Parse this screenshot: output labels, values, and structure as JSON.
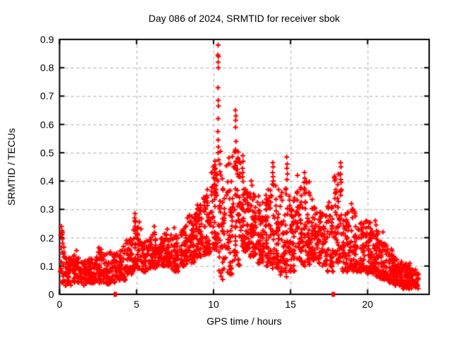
{
  "title": "Day 086 of 2024, SRMTID for receiver sbok",
  "colors": {
    "marker": "#ff0000",
    "grid": "#a8a8a8",
    "axis": "#000000",
    "background": "#ffffff",
    "text": "#000000"
  },
  "chart_data": {
    "type": "scatter",
    "title": "Day 086 of 2024, SRMTID for receiver sbok",
    "xlabel": "GPS time / hours",
    "ylabel": "SRMTID / TECUs",
    "xlim": [
      0,
      24
    ],
    "ylim": [
      0,
      0.9
    ],
    "xticks": [
      0,
      5,
      10,
      15,
      20
    ],
    "yticks": [
      0,
      0.1,
      0.2,
      0.3,
      0.4,
      0.5,
      0.6,
      0.7,
      0.8,
      0.9
    ],
    "grid": true,
    "grid_style": "dashed",
    "legend": "none",
    "series": [
      {
        "name": "srmtid",
        "marker": "plus",
        "color": "#ff0000",
        "envelope_bins": [
          [
            0.0,
            0.3,
            0.04,
            0.24,
            22
          ],
          [
            0.3,
            0.8,
            0.03,
            0.13,
            45
          ],
          [
            0.8,
            1.3,
            0.04,
            0.15,
            48
          ],
          [
            1.3,
            1.8,
            0.03,
            0.12,
            46
          ],
          [
            1.8,
            2.3,
            0.04,
            0.13,
            46
          ],
          [
            2.3,
            2.8,
            0.04,
            0.16,
            46
          ],
          [
            2.8,
            3.3,
            0.03,
            0.145,
            46
          ],
          [
            3.3,
            3.8,
            0.04,
            0.15,
            42
          ],
          [
            3.8,
            4.3,
            0.05,
            0.17,
            46
          ],
          [
            4.3,
            4.8,
            0.07,
            0.2,
            48
          ],
          [
            4.8,
            5.3,
            0.09,
            0.26,
            50
          ],
          [
            5.3,
            5.8,
            0.08,
            0.19,
            46
          ],
          [
            5.8,
            6.3,
            0.09,
            0.22,
            50
          ],
          [
            6.3,
            6.8,
            0.1,
            0.2,
            46
          ],
          [
            6.8,
            7.3,
            0.1,
            0.22,
            50
          ],
          [
            7.3,
            7.8,
            0.08,
            0.21,
            46
          ],
          [
            7.8,
            8.3,
            0.1,
            0.25,
            50
          ],
          [
            8.3,
            8.8,
            0.11,
            0.28,
            52
          ],
          [
            8.8,
            9.3,
            0.13,
            0.33,
            54
          ],
          [
            9.3,
            9.8,
            0.14,
            0.35,
            54
          ],
          [
            9.8,
            10.3,
            0.15,
            0.46,
            55
          ],
          [
            10.3,
            10.8,
            0.05,
            0.45,
            45
          ],
          [
            10.8,
            11.3,
            0.07,
            0.5,
            50
          ],
          [
            11.3,
            11.8,
            0.1,
            0.52,
            55
          ],
          [
            11.8,
            12.3,
            0.15,
            0.42,
            62
          ],
          [
            12.3,
            12.8,
            0.13,
            0.37,
            60
          ],
          [
            12.8,
            13.3,
            0.11,
            0.35,
            56
          ],
          [
            13.3,
            13.8,
            0.1,
            0.37,
            54
          ],
          [
            13.8,
            14.3,
            0.09,
            0.4,
            54
          ],
          [
            14.3,
            14.8,
            0.06,
            0.38,
            54
          ],
          [
            14.8,
            15.3,
            0.08,
            0.36,
            54
          ],
          [
            15.3,
            15.8,
            0.1,
            0.38,
            54
          ],
          [
            15.8,
            16.3,
            0.1,
            0.4,
            54
          ],
          [
            16.3,
            16.8,
            0.12,
            0.31,
            50
          ],
          [
            16.8,
            17.3,
            0.1,
            0.3,
            50
          ],
          [
            17.3,
            17.8,
            0.08,
            0.31,
            50
          ],
          [
            17.8,
            18.3,
            0.1,
            0.44,
            52
          ],
          [
            18.3,
            18.8,
            0.08,
            0.3,
            50
          ],
          [
            18.8,
            19.3,
            0.08,
            0.32,
            50
          ],
          [
            19.3,
            19.8,
            0.08,
            0.26,
            50
          ],
          [
            19.8,
            20.3,
            0.07,
            0.26,
            54
          ],
          [
            20.3,
            20.8,
            0.06,
            0.23,
            56
          ],
          [
            20.8,
            21.3,
            0.05,
            0.19,
            56
          ],
          [
            21.3,
            21.8,
            0.04,
            0.16,
            56
          ],
          [
            21.8,
            22.3,
            0.03,
            0.13,
            56
          ],
          [
            22.3,
            22.8,
            0.02,
            0.11,
            52
          ],
          [
            22.8,
            23.35,
            0.02,
            0.09,
            34
          ]
        ],
        "spike_points": [
          [
            0.12,
            0.24
          ],
          [
            0.15,
            0.225
          ],
          [
            0.13,
            0.21
          ],
          [
            0.18,
            0.195
          ],
          [
            0.2,
            0.18
          ],
          [
            1.1,
            0.155
          ],
          [
            2.55,
            0.165
          ],
          [
            3.3,
            0.15
          ],
          [
            4.9,
            0.285
          ],
          [
            4.88,
            0.27
          ],
          [
            4.92,
            0.255
          ],
          [
            4.9,
            0.24
          ],
          [
            4.94,
            0.225
          ],
          [
            6.15,
            0.24
          ],
          [
            7.0,
            0.23
          ],
          [
            7.45,
            0.235
          ],
          [
            8.3,
            0.27
          ],
          [
            8.95,
            0.315
          ],
          [
            9.0,
            0.3
          ],
          [
            9.6,
            0.37
          ],
          [
            9.9,
            0.38
          ],
          [
            10.1,
            0.47
          ],
          [
            10.13,
            0.445
          ],
          [
            10.16,
            0.42
          ],
          [
            10.3,
            0.88
          ],
          [
            10.28,
            0.845
          ],
          [
            10.32,
            0.84
          ],
          [
            10.3,
            0.82
          ],
          [
            10.31,
            0.8
          ],
          [
            10.29,
            0.73
          ],
          [
            10.3,
            0.685
          ],
          [
            10.32,
            0.665
          ],
          [
            10.3,
            0.62
          ],
          [
            10.28,
            0.575
          ],
          [
            10.3,
            0.545
          ],
          [
            10.31,
            0.52
          ],
          [
            10.29,
            0.5
          ],
          [
            10.33,
            0.475
          ],
          [
            10.45,
            0.505
          ],
          [
            10.42,
            0.46
          ],
          [
            11.42,
            0.65
          ],
          [
            11.45,
            0.63
          ],
          [
            11.44,
            0.615
          ],
          [
            11.43,
            0.59
          ],
          [
            11.46,
            0.54
          ],
          [
            11.42,
            0.51
          ],
          [
            11.44,
            0.505
          ],
          [
            11.45,
            0.47
          ],
          [
            11.43,
            0.455
          ],
          [
            11.47,
            0.44
          ],
          [
            11.9,
            0.49
          ],
          [
            11.92,
            0.47
          ],
          [
            11.88,
            0.445
          ],
          [
            11.9,
            0.43
          ],
          [
            12.45,
            0.4
          ],
          [
            12.5,
            0.385
          ],
          [
            13.4,
            0.35
          ],
          [
            13.45,
            0.335
          ],
          [
            13.85,
            0.465
          ],
          [
            13.87,
            0.45
          ],
          [
            13.84,
            0.43
          ],
          [
            13.86,
            0.415
          ],
          [
            13.88,
            0.4
          ],
          [
            13.9,
            0.385
          ],
          [
            14.75,
            0.485
          ],
          [
            14.78,
            0.46
          ],
          [
            14.76,
            0.445
          ],
          [
            14.8,
            0.425
          ],
          [
            14.77,
            0.405
          ],
          [
            15.45,
            0.42
          ],
          [
            15.9,
            0.43
          ],
          [
            15.92,
            0.41
          ],
          [
            15.88,
            0.395
          ],
          [
            15.9,
            0.375
          ],
          [
            15.93,
            0.355
          ],
          [
            16.4,
            0.335
          ],
          [
            17.5,
            0.325
          ],
          [
            18.25,
            0.465
          ],
          [
            18.27,
            0.45
          ],
          [
            18.24,
            0.425
          ],
          [
            18.26,
            0.405
          ],
          [
            18.28,
            0.395
          ],
          [
            18.3,
            0.37
          ],
          [
            18.26,
            0.35
          ],
          [
            18.95,
            0.32
          ],
          [
            19.0,
            0.3
          ],
          [
            20.5,
            0.26
          ],
          [
            20.55,
            0.245
          ],
          [
            21.0,
            0.22
          ]
        ]
      },
      {
        "name": "axis-flag-markers",
        "marker": "filled-square",
        "color": "#ff0000",
        "points": [
          [
            3.62,
            0
          ],
          [
            17.78,
            0
          ]
        ]
      }
    ]
  }
}
